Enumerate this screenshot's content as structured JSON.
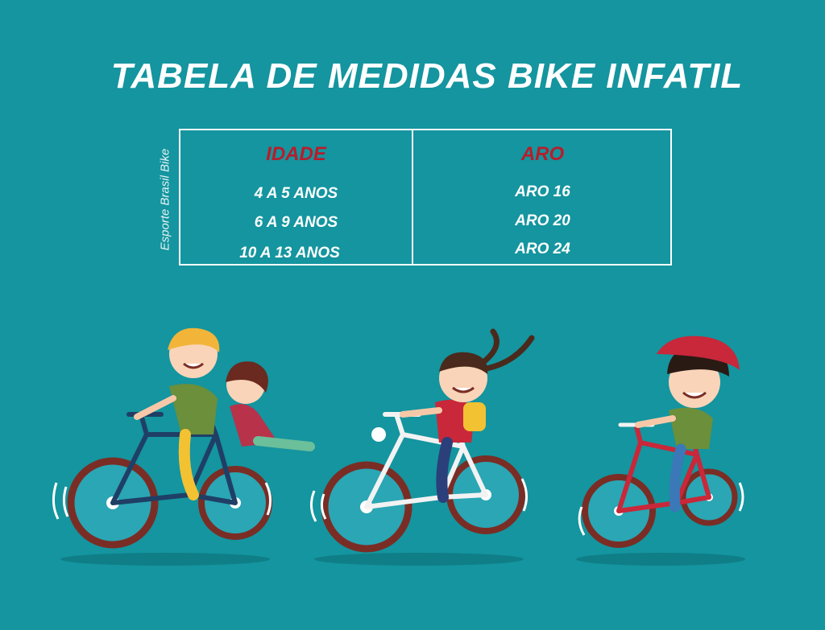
{
  "title": "TABELA DE MEDIDAS BIKE INFATIL",
  "watermark": "Esporte Brasil Bike",
  "table": {
    "headers": [
      "IDADE",
      "ARO"
    ],
    "rows": [
      {
        "idade": "4 A 5 ANOS",
        "aro": "ARO 16"
      },
      {
        "idade": "6 A 9 ANOS",
        "aro": "ARO 20"
      },
      {
        "idade": "10  A 13 ANOS",
        "aro": "ARO 24"
      }
    ]
  },
  "colors": {
    "background": "#14959f",
    "header_text": "#b71d2b",
    "text": "#ffffff",
    "bike_blue": "#1f3f66",
    "bike_white": "#f2f2f2",
    "bike_red": "#c8283a"
  }
}
